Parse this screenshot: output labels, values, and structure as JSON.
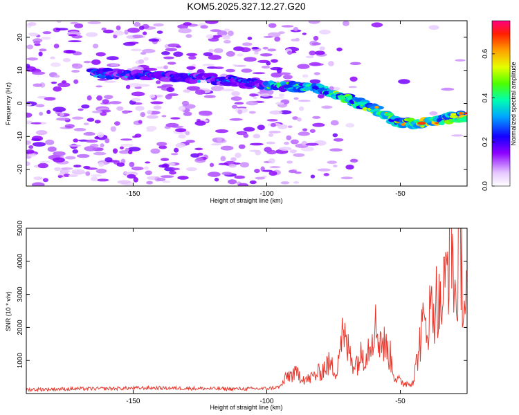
{
  "title": "KOM5.2025.327.12.27.G20",
  "chart_data": [
    {
      "type": "heatmap",
      "xlabel": "Height of straight line (km)",
      "ylabel": "Frequency (Hz)",
      "xlim": [
        -190,
        -25
      ],
      "ylim": [
        -25,
        25
      ],
      "xticks": [
        -150,
        -100,
        -50
      ],
      "yticks": [
        -20,
        -10,
        0,
        10,
        20
      ],
      "colorbar": {
        "label": "Normalized spectral amplitude",
        "range": [
          0,
          0.75
        ],
        "ticks": [
          0.0,
          0.2,
          0.4,
          0.6
        ]
      },
      "ridge": {
        "description_points_x": [
          -160,
          -145,
          -130,
          -115,
          -100,
          -90,
          -80,
          -72,
          -65,
          -58,
          -50,
          -42,
          -35,
          -28
        ],
        "description_points_y": [
          9,
          8.5,
          8,
          7,
          5.5,
          5,
          4.5,
          2,
          0,
          -2.5,
          -6,
          -6,
          -5,
          -4
        ]
      }
    },
    {
      "type": "line",
      "xlabel": "Height of straight line (km)",
      "ylabel": "SNR (10 * v/v)",
      "xlim": [
        -190,
        -25
      ],
      "ylim": [
        0,
        5000
      ],
      "xticks": [
        -150,
        -100,
        -50
      ],
      "yticks": [
        1000,
        2000,
        3000,
        4000,
        5000
      ],
      "series": [
        {
          "name": "SNR",
          "color": "#e8372c",
          "x": [
            -190,
            -175,
            -160,
            -145,
            -130,
            -115,
            -100,
            -95,
            -92,
            -88,
            -85,
            -80,
            -77,
            -74,
            -72,
            -70,
            -67,
            -64,
            -62,
            -60,
            -57,
            -54,
            -52,
            -50,
            -47,
            -45,
            -42,
            -40,
            -38,
            -36,
            -35,
            -33,
            -31,
            -30,
            -29,
            -28,
            -27,
            -26,
            -25
          ],
          "values": [
            120,
            140,
            150,
            170,
            160,
            140,
            150,
            200,
            550,
            600,
            400,
            650,
            900,
            700,
            1800,
            1400,
            900,
            1200,
            1400,
            2100,
            1600,
            1200,
            500,
            350,
            300,
            420,
            1900,
            2200,
            2600,
            2900,
            2500,
            3400,
            5000,
            3600,
            2500,
            4800,
            3900,
            2600,
            3300
          ]
        }
      ]
    }
  ]
}
